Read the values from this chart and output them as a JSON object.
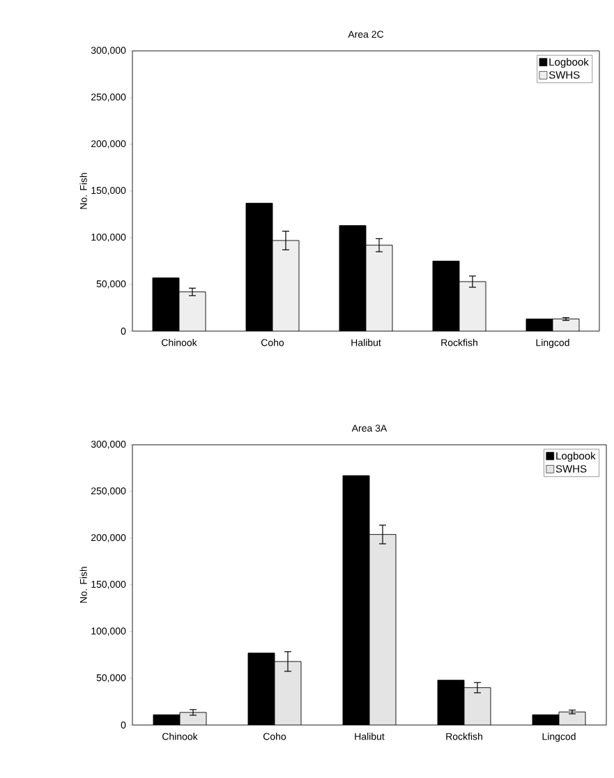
{
  "chart_data": [
    {
      "type": "bar",
      "title": "Area 2C",
      "ylabel": "No. Fish",
      "categories": [
        "Chinook",
        "Coho",
        "Halibut",
        "Rockfish",
        "Lingcod"
      ],
      "series": [
        {
          "name": "Logbook",
          "color": "#000000",
          "values": [
            57000,
            137000,
            113000,
            75000,
            13000
          ]
        },
        {
          "name": "SWHS",
          "color": "#eeeeee",
          "values": [
            42000,
            97000,
            92000,
            53000,
            13000
          ],
          "errors": [
            4000,
            10000,
            7000,
            6000,
            1500
          ]
        }
      ],
      "ylim": [
        0,
        300000
      ],
      "yticks": [
        0,
        {
          "value": 50000,
          "label": "50,000"
        },
        {
          "value": 100000,
          "label": "100,000"
        },
        {
          "value": 150000,
          "label": "150,000"
        },
        {
          "value": 200000,
          "label": "200,000"
        },
        {
          "value": 250000,
          "label": "250,000"
        },
        {
          "value": 300000,
          "label": "300,000"
        }
      ],
      "legend": "top right",
      "grid": false
    },
    {
      "type": "bar",
      "title": "Area 3A",
      "ylabel": "No. Fish",
      "categories": [
        "Chinook",
        "Coho",
        "Halibut",
        "Rockfish",
        "Lingcod"
      ],
      "series": [
        {
          "name": "Logbook",
          "color": "#000000",
          "values": [
            11000,
            77000,
            267000,
            48000,
            11000
          ]
        },
        {
          "name": "SWHS",
          "color": "#e4e4e4",
          "values": [
            13500,
            68000,
            204000,
            40000,
            14000
          ],
          "errors": [
            3000,
            10500,
            10000,
            5500,
            2000
          ]
        }
      ],
      "ylim": [
        0,
        300000
      ],
      "yticks": [
        0,
        {
          "value": 50000,
          "label": "50,000"
        },
        {
          "value": 100000,
          "label": "100,000"
        },
        {
          "value": 150000,
          "label": "150,000"
        },
        {
          "value": 200000,
          "label": "200,000"
        },
        {
          "value": 250000,
          "label": "250,000"
        },
        {
          "value": 300000,
          "label": "300,000"
        }
      ],
      "legend": "top right",
      "grid": false
    }
  ]
}
